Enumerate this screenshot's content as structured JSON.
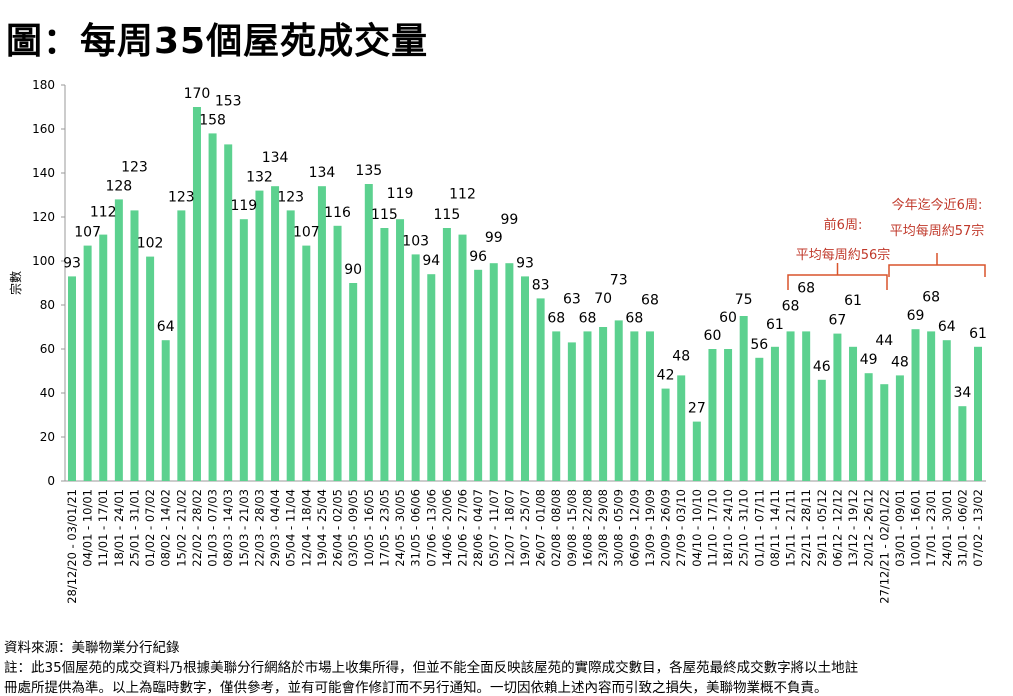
{
  "title": "圖：每周35個屋苑成交量",
  "chart_data": {
    "type": "bar",
    "title": "圖：每周35個屋苑成交量",
    "xlabel": "",
    "ylabel": "宗數",
    "ylim": [
      0,
      180
    ],
    "yticks": [
      0,
      20,
      40,
      60,
      80,
      100,
      120,
      140,
      160,
      180
    ],
    "grid": false,
    "bar_color": "#5cd18f",
    "annotation_color": "#c0392b",
    "bracket_color": "#d9542b",
    "categories": [
      "28/12/20 - 03/01/21",
      "04/01 - 10/01",
      "11/01 - 17/01",
      "18/01 - 24/01",
      "25/01 - 31/01",
      "01/02 - 07/02",
      "08/02 - 14/02",
      "15/02 - 21/02",
      "22/02 - 28/02",
      "01/03 - 07/03",
      "08/03 - 14/03",
      "15/03 - 21/03",
      "22/03 - 28/03",
      "29/03 - 04/04",
      "05/04 - 11/04",
      "12/04 - 18/04",
      "19/04 - 25/04",
      "26/04 - 02/05",
      "03/05 - 09/05",
      "10/05 - 16/05",
      "17/05 - 23/05",
      "24/05 - 30/05",
      "31/05 - 06/06",
      "07/06 - 13/06",
      "14/06 - 20/06",
      "21/06 - 27/06",
      "28/06 - 04/07",
      "05/07 - 11/07",
      "12/07 - 18/07",
      "19/07 - 25/07",
      "26/07 - 01/08",
      "02/08 - 08/08",
      "09/08 - 15/08",
      "16/08 - 22/08",
      "23/08 - 29/08",
      "30/08 - 05/09",
      "06/09 - 12/09",
      "13/09 - 19/09",
      "20/09 - 26/09",
      "27/09 - 03/10",
      "04/10 - 10/10",
      "11/10 - 17/10",
      "18/10 - 24/10",
      "25/10 - 31/10",
      "01/11 - 07/11",
      "08/11 - 14/11",
      "15/11 - 21/11",
      "22/11 - 28/11",
      "29/11 - 05/12",
      "06/12 - 12/12",
      "13/12 - 19/12",
      "20/12 - 26/12",
      "27/12/21 - 02/01/22",
      "03/01 - 09/01",
      "10/01 - 16/01",
      "17/01 - 23/01",
      "24/01 - 30/01",
      "31/01 - 06/02",
      "07/02 - 13/02"
    ],
    "values": [
      93,
      107,
      112,
      128,
      123,
      102,
      64,
      123,
      170,
      158,
      153,
      119,
      132,
      134,
      123,
      107,
      134,
      116,
      90,
      135,
      115,
      119,
      103,
      94,
      115,
      112,
      96,
      99,
      99,
      93,
      83,
      68,
      63,
      68,
      70,
      73,
      68,
      68,
      42,
      48,
      27,
      60,
      60,
      75,
      56,
      61,
      68,
      68,
      46,
      67,
      61,
      49,
      44,
      48,
      69,
      68,
      64,
      34,
      61
    ],
    "annotations": [
      {
        "lines": [
          "前6周:",
          "平均每周約56宗"
        ],
        "from_index": 46,
        "to_index": 52
      },
      {
        "lines": [
          "今年迄今近6周:",
          "平均每周約57宗"
        ],
        "from_index": 53,
        "to_index": 58
      }
    ]
  },
  "footnotes": {
    "source": "資料來源：美聯物業分行紀錄",
    "note_line1": "註：此35個屋苑的成交資料乃根據美聯分行網絡於市場上收集所得，但並不能全面反映該屋苑的實際成交數目，各屋苑最終成交數字將以土地註",
    "note_line2": "冊處所提供為準。以上為臨時數字，僅供參考，並有可能會作修訂而不另行通知。一切因依賴上述內容而引致之損失，美聯物業概不負責。"
  }
}
